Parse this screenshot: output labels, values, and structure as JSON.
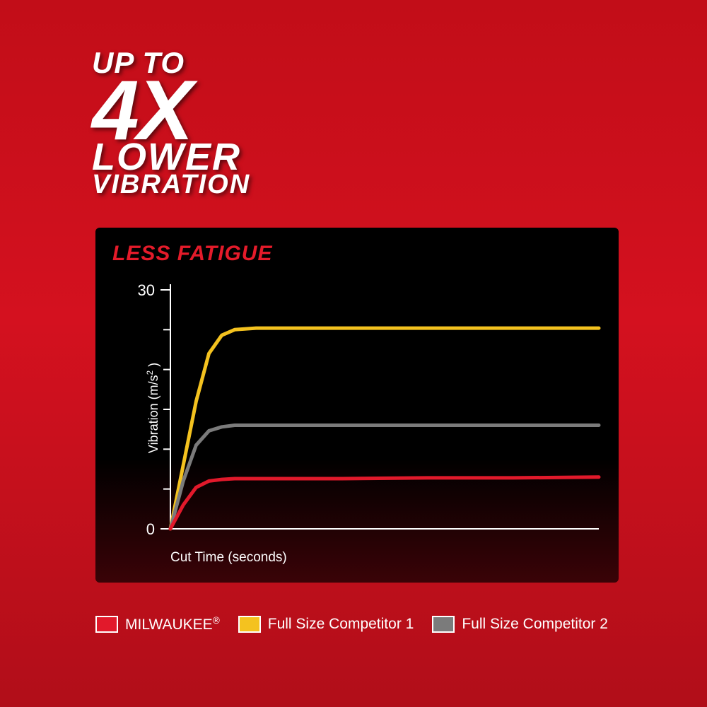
{
  "headline": {
    "line1": "UP TO",
    "line2": "4X",
    "line3": "LOWER",
    "line4": "VIBRATION"
  },
  "card": {
    "title": "LESS FATIGUE",
    "title_color": "#e41b2a",
    "background_top": "#000000",
    "background_bottom": "#3a0307"
  },
  "chart": {
    "type": "line",
    "xlabel": "Cut Time (seconds)",
    "ylabel_html": "Vibration (m/s<sup>2</sup> )",
    "xlim": [
      0,
      100
    ],
    "ylim": [
      0,
      30
    ],
    "ytick_values": [
      0,
      30
    ],
    "ytick_minor_count": 5,
    "axis_color": "#ffffff",
    "tick_color": "#ffffff",
    "axis_width": 2,
    "tick_length_minor": 10,
    "tick_length_major": 14,
    "label_fontsize": 19,
    "tick_fontsize": 22,
    "series": [
      {
        "name": "Full Size Competitor 1",
        "legend_key": "comp1",
        "color": "#f4c21f",
        "line_width": 5,
        "points": [
          [
            0,
            0
          ],
          [
            3,
            8
          ],
          [
            6,
            16
          ],
          [
            9,
            22
          ],
          [
            12,
            24.3
          ],
          [
            15,
            25
          ],
          [
            20,
            25.2
          ],
          [
            40,
            25.2
          ],
          [
            60,
            25.2
          ],
          [
            80,
            25.2
          ],
          [
            100,
            25.2
          ]
        ]
      },
      {
        "name": "Full Size Competitor 2",
        "legend_key": "comp2",
        "color": "#7b7b7b",
        "line_width": 5,
        "points": [
          [
            0,
            0
          ],
          [
            3,
            6
          ],
          [
            6,
            10.5
          ],
          [
            9,
            12.3
          ],
          [
            12,
            12.8
          ],
          [
            15,
            13
          ],
          [
            20,
            13
          ],
          [
            40,
            13
          ],
          [
            60,
            13
          ],
          [
            80,
            13
          ],
          [
            100,
            13
          ]
        ]
      },
      {
        "name": "MILWAUKEE®",
        "legend_key": "milwaukee",
        "color": "#e2192b",
        "line_width": 5,
        "points": [
          [
            0,
            0
          ],
          [
            3,
            3
          ],
          [
            6,
            5.2
          ],
          [
            9,
            6
          ],
          [
            12,
            6.2
          ],
          [
            15,
            6.3
          ],
          [
            20,
            6.3
          ],
          [
            40,
            6.3
          ],
          [
            60,
            6.4
          ],
          [
            80,
            6.4
          ],
          [
            100,
            6.5
          ]
        ]
      }
    ]
  },
  "legend": {
    "items": [
      {
        "key": "milwaukee",
        "label_html": "MILWAUKEE<sup>®</sup>",
        "color": "#e2192b"
      },
      {
        "key": "comp1",
        "label_html": "Full Size Competitor 1",
        "color": "#f4c21f"
      },
      {
        "key": "comp2",
        "label_html": "Full Size Competitor 2",
        "color": "#7b7b7b"
      }
    ],
    "swatch_border": "#ffffff",
    "label_color": "#ffffff"
  }
}
